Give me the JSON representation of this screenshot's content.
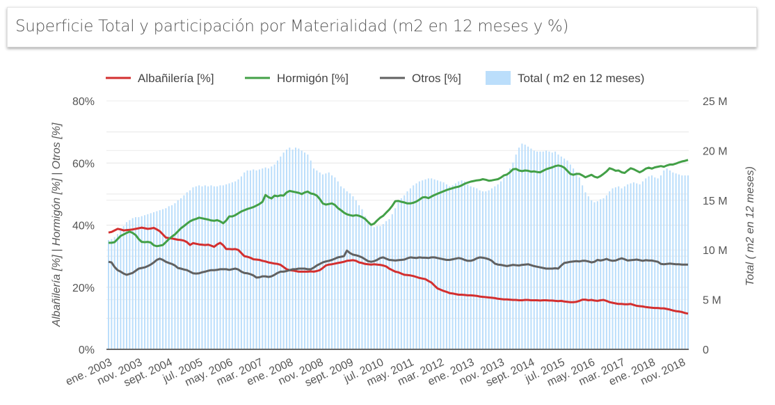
{
  "header": {
    "title": "Superficie Total y participación por Materialidad (m2 en 12 meses y %)"
  },
  "chart_data": {
    "type": "bar+line",
    "title": "Superficie Total y participación por Materialidad (m2 en 12 meses y %)",
    "legend_position": "top",
    "grid": true,
    "x_start": "ene. 2003",
    "x_frequency": "monthly",
    "x_tick_labels": [
      "ene. 2003",
      "nov. 2003",
      "sept. 2004",
      "jul. 2005",
      "may. 2006",
      "mar. 2007",
      "ene. 2008",
      "nov. 2008",
      "sept. 2009",
      "jul. 2010",
      "may. 2011",
      "mar. 2012",
      "ene. 2013",
      "nov. 2013",
      "sept. 2014",
      "jul. 2015",
      "may. 2016",
      "mar. 2017",
      "ene. 2018",
      "nov. 2018"
    ],
    "y_left": {
      "label": "Albañilería [%] | Hormigón [%] | Otros [%]",
      "range": [
        0,
        80
      ],
      "ticks": [
        "0%",
        "20%",
        "40%",
        "60%",
        "80%"
      ]
    },
    "y_right": {
      "label": "Total ( m2 en 12 meses)",
      "range": [
        0,
        25
      ],
      "unit": "M",
      "ticks": [
        "0",
        "5 M",
        "10 M",
        "15 M",
        "20 M",
        "25 M"
      ]
    },
    "series": [
      {
        "name": "Albañilería [%]",
        "type": "line",
        "axis": "left",
        "color": "#d32f2f",
        "values": [
          37.6,
          37.8,
          38.3,
          38.8,
          38.6,
          38.3,
          38.4,
          38.5,
          38.6,
          38.8,
          39.0,
          39.2,
          39.0,
          38.8,
          38.9,
          39.1,
          38.6,
          38.0,
          37.0,
          36.0,
          35.8,
          35.7,
          35.5,
          35.3,
          35.2,
          35.0,
          34.5,
          33.6,
          34.2,
          34.0,
          33.8,
          33.7,
          33.6,
          33.7,
          33.4,
          33.0,
          33.8,
          34.3,
          33.5,
          32.3,
          32.3,
          32.2,
          32.3,
          32.0,
          31.0,
          30.0,
          29.8,
          29.5,
          29.0,
          28.9,
          28.8,
          28.5,
          28.3,
          28.0,
          27.8,
          27.6,
          27.5,
          27.2,
          26.5,
          25.8,
          25.5,
          25.4,
          25.2,
          25.0,
          25.0,
          25.0,
          25.0,
          25.1,
          25.0,
          25.2,
          25.5,
          26.2,
          27.0,
          27.3,
          27.4,
          27.6,
          27.8,
          28.0,
          28.2,
          28.5,
          28.6,
          28.7,
          28.5,
          28.0,
          27.8,
          27.5,
          27.4,
          27.3,
          27.4,
          27.3,
          27.2,
          27.0,
          26.7,
          26.0,
          25.5,
          25.0,
          24.8,
          24.4,
          24.0,
          23.9,
          23.8,
          23.6,
          23.3,
          23.0,
          22.8,
          22.6,
          22.0,
          21.5,
          20.5,
          19.6,
          19.2,
          18.8,
          18.5,
          18.1,
          18.0,
          17.8,
          17.6,
          17.6,
          17.5,
          17.4,
          17.4,
          17.3,
          17.2,
          17.0,
          16.9,
          16.8,
          16.7,
          16.6,
          16.5,
          16.3,
          16.2,
          16.1,
          16.1,
          16.0,
          15.9,
          15.9,
          15.8,
          15.8,
          15.9,
          15.9,
          15.8,
          15.8,
          15.8,
          15.7,
          15.8,
          15.8,
          15.7,
          15.7,
          15.6,
          15.5,
          15.6,
          15.4,
          15.3,
          15.2,
          15.2,
          15.3,
          15.6,
          16.0,
          16.0,
          15.8,
          15.9,
          15.7,
          15.6,
          15.8,
          15.9,
          15.6,
          15.2,
          15.0,
          14.8,
          14.6,
          14.6,
          14.5,
          14.5,
          14.6,
          14.3,
          14.0,
          13.9,
          13.8,
          13.6,
          13.5,
          13.4,
          13.3,
          13.3,
          13.2,
          13.2,
          13.0,
          12.8,
          12.5,
          12.3,
          12.2,
          12.0,
          11.7,
          11.5
        ]
      },
      {
        "name": "Hormigón [%]",
        "type": "line",
        "axis": "left",
        "color": "#43a047",
        "values": [
          34.3,
          34.3,
          34.5,
          35.5,
          36.5,
          37.0,
          37.5,
          37.9,
          37.5,
          36.8,
          35.5,
          34.6,
          34.5,
          34.6,
          34.4,
          33.5,
          33.2,
          33.4,
          33.6,
          34.5,
          35.5,
          36.3,
          37.0,
          38.0,
          39.0,
          39.7,
          40.5,
          41.2,
          41.7,
          42.0,
          42.4,
          42.2,
          42.0,
          41.8,
          41.5,
          41.4,
          41.6,
          41.2,
          40.6,
          41.5,
          42.8,
          42.8,
          43.2,
          43.8,
          44.4,
          44.8,
          45.2,
          45.5,
          45.8,
          46.3,
          46.8,
          47.5,
          49.7,
          49.0,
          48.6,
          49.5,
          49.3,
          49.6,
          49.5,
          50.5,
          51.0,
          50.8,
          50.6,
          50.4,
          50.0,
          50.5,
          50.8,
          50.2,
          50.0,
          49.5,
          48.4,
          47.0,
          46.6,
          46.8,
          47.0,
          46.5,
          45.5,
          44.8,
          44.0,
          43.5,
          43.2,
          43.0,
          43.2,
          43.0,
          42.6,
          42.0,
          41.0,
          40.1,
          40.5,
          41.5,
          42.4,
          43.0,
          44.0,
          45.0,
          46.2,
          47.7,
          47.8,
          47.5,
          47.3,
          47.0,
          47.0,
          47.2,
          47.6,
          48.2,
          48.9,
          49.0,
          48.7,
          49.2,
          49.7,
          50.1,
          50.5,
          50.9,
          51.3,
          51.6,
          51.9,
          52.2,
          52.4,
          52.8,
          53.3,
          53.7,
          54.0,
          54.2,
          54.4,
          54.5,
          54.8,
          54.6,
          54.3,
          54.4,
          54.6,
          54.8,
          55.3,
          56.0,
          56.3,
          57.0,
          58.0,
          58.1,
          57.6,
          57.4,
          57.6,
          57.5,
          57.2,
          57.3,
          57.1,
          57.0,
          57.5,
          58.0,
          58.3,
          58.6,
          59.0,
          59.2,
          59.0,
          58.5,
          57.5,
          56.5,
          56.2,
          56.5,
          56.5,
          56.0,
          55.4,
          55.8,
          56.2,
          55.6,
          55.3,
          55.8,
          56.5,
          57.3,
          58.3,
          58.0,
          57.5,
          57.6,
          57.0,
          56.8,
          57.6,
          58.3,
          58.0,
          57.5,
          57.0,
          57.5,
          58.2,
          58.5,
          58.2,
          58.6,
          58.8,
          59.0,
          58.8,
          59.2,
          59.5,
          59.5,
          59.8,
          60.2,
          60.5,
          60.7,
          61.0
        ]
      },
      {
        "name": "Otros [%]",
        "type": "line",
        "axis": "left",
        "color": "#616161",
        "values": [
          28.2,
          28.0,
          26.5,
          25.5,
          25.0,
          24.4,
          24.0,
          24.3,
          24.6,
          25.3,
          26.0,
          26.2,
          26.4,
          26.8,
          27.3,
          28.0,
          28.8,
          29.2,
          28.8,
          28.2,
          27.8,
          27.5,
          27.0,
          26.2,
          26.0,
          25.7,
          25.5,
          25.0,
          24.5,
          24.4,
          24.5,
          24.8,
          25.0,
          25.3,
          25.5,
          25.5,
          25.6,
          25.8,
          25.8,
          25.8,
          25.6,
          25.8,
          26.0,
          25.7,
          25.0,
          24.6,
          24.5,
          24.2,
          23.8,
          23.1,
          23.2,
          23.5,
          23.5,
          23.3,
          23.5,
          24.0,
          24.6,
          25.0,
          25.0,
          25.2,
          25.5,
          25.8,
          25.8,
          26.0,
          26.0,
          26.0,
          25.8,
          25.8,
          26.3,
          27.0,
          27.5,
          28.0,
          28.3,
          28.5,
          28.8,
          29.2,
          29.6,
          29.8,
          30.0,
          31.8,
          31.0,
          30.5,
          30.3,
          30.0,
          29.6,
          29.0,
          28.4,
          28.2,
          28.4,
          28.8,
          29.4,
          29.6,
          29.2,
          28.8,
          28.7,
          28.6,
          28.7,
          28.8,
          28.9,
          29.3,
          29.6,
          29.5,
          29.4,
          29.6,
          29.5,
          29.5,
          29.4,
          29.6,
          29.6,
          29.4,
          29.2,
          29.0,
          28.8,
          28.8,
          29.0,
          29.2,
          29.4,
          29.2,
          28.8,
          28.5,
          28.5,
          28.8,
          29.3,
          29.6,
          29.5,
          29.3,
          29.0,
          28.5,
          27.6,
          27.3,
          27.2,
          27.0,
          26.8,
          27.0,
          27.2,
          27.1,
          27.0,
          27.2,
          27.3,
          27.4,
          27.1,
          26.8,
          26.6,
          26.4,
          26.2,
          26.0,
          26.0,
          26.0,
          26.1,
          26.0,
          27.0,
          27.8,
          28.0,
          28.2,
          28.3,
          28.4,
          28.3,
          28.5,
          28.5,
          28.3,
          28.0,
          28.2,
          28.8,
          28.6,
          28.8,
          29.1,
          28.7,
          28.5,
          28.6,
          29.0,
          29.3,
          29.0,
          28.6,
          28.7,
          28.8,
          28.9,
          28.7,
          28.5,
          28.7,
          28.6,
          28.6,
          28.4,
          28.2,
          27.5,
          27.4,
          27.5,
          27.6,
          27.5,
          27.4,
          27.4,
          27.3,
          27.3,
          27.3
        ]
      },
      {
        "name": "Total ( m2 en 12 meses)",
        "type": "bar",
        "axis": "right",
        "unit": "M m2",
        "color": "#bbdefb",
        "values": [
          11.0,
          11.1,
          11.3,
          11.6,
          12.0,
          12.4,
          12.8,
          13.0,
          13.2,
          13.3,
          13.3,
          13.4,
          13.5,
          13.6,
          13.7,
          13.8,
          13.9,
          14.0,
          14.1,
          14.2,
          14.4,
          14.5,
          14.7,
          15.0,
          15.2,
          15.5,
          15.8,
          16.0,
          16.3,
          16.4,
          16.5,
          16.4,
          16.5,
          16.4,
          16.5,
          16.4,
          16.4,
          16.5,
          16.5,
          16.6,
          16.7,
          16.8,
          16.9,
          17.1,
          17.4,
          17.8,
          18.0,
          18.0,
          18.1,
          18.0,
          18.1,
          18.2,
          18.3,
          18.2,
          18.4,
          18.6,
          19.0,
          19.4,
          19.8,
          20.1,
          20.3,
          20.1,
          20.3,
          20.2,
          20.0,
          19.8,
          19.6,
          19.0,
          18.2,
          18.0,
          17.8,
          17.6,
          17.7,
          17.8,
          17.5,
          17.3,
          16.9,
          16.4,
          16.2,
          15.9,
          15.7,
          15.4,
          15.0,
          14.5,
          14.1,
          13.4,
          12.7,
          12.4,
          12.3,
          12.4,
          12.4,
          12.6,
          12.9,
          13.1,
          13.6,
          14.2,
          14.8,
          15.2,
          15.5,
          15.9,
          16.2,
          16.5,
          16.7,
          16.9,
          17.0,
          17.1,
          17.2,
          17.2,
          17.1,
          17.0,
          16.9,
          16.8,
          16.6,
          16.4,
          16.5,
          16.7,
          16.9,
          17.0,
          16.9,
          16.6,
          16.4,
          16.3,
          16.2,
          16.0,
          15.9,
          15.9,
          16.0,
          16.2,
          16.4,
          16.6,
          16.9,
          17.3,
          17.7,
          18.2,
          18.8,
          19.6,
          20.3,
          20.7,
          20.6,
          20.4,
          20.2,
          20.0,
          19.9,
          19.9,
          19.9,
          20.0,
          19.9,
          19.8,
          19.9,
          19.6,
          19.4,
          19.2,
          19.0,
          18.6,
          18.2,
          17.8,
          17.3,
          16.5,
          15.8,
          15.4,
          15.0,
          14.8,
          14.9,
          15.1,
          15.2,
          15.5,
          15.9,
          16.2,
          16.3,
          16.4,
          16.2,
          16.4,
          16.6,
          16.7,
          16.8,
          16.7,
          16.6,
          16.9,
          17.2,
          17.4,
          17.5,
          17.3,
          17.2,
          17.5,
          18.0,
          18.2,
          18.0,
          17.8,
          17.7,
          17.6,
          17.5,
          17.5,
          17.5
        ]
      }
    ]
  }
}
